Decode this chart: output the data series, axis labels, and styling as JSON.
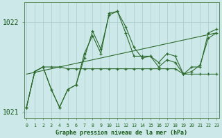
{
  "title": "Graphe pression niveau de la mer (hPa)",
  "hours": [
    0,
    1,
    2,
    3,
    4,
    5,
    6,
    7,
    8,
    9,
    10,
    11,
    12,
    13,
    14,
    15,
    16,
    17,
    18,
    19,
    20,
    21,
    22,
    23
  ],
  "line_main": [
    1021.05,
    1021.45,
    1021.5,
    1021.25,
    1021.05,
    1021.25,
    1021.3,
    1021.65,
    1021.85,
    1021.65,
    1022.1,
    1022.12,
    1021.95,
    1021.72,
    1021.6,
    1021.62,
    1021.5,
    1021.58,
    1021.55,
    1021.42,
    1021.45,
    1021.52,
    1021.82,
    1021.88
  ],
  "line_flat": [
    1021.05,
    1021.45,
    1021.5,
    1021.5,
    1021.5,
    1021.48,
    1021.48,
    1021.48,
    1021.48,
    1021.48,
    1021.48,
    1021.48,
    1021.48,
    1021.48,
    1021.48,
    1021.48,
    1021.48,
    1021.48,
    1021.48,
    1021.42,
    1021.42,
    1021.42,
    1021.42,
    1021.42
  ],
  "line_envelope": [
    1021.05,
    1021.45,
    1021.5,
    1021.25,
    1021.05,
    1021.25,
    1021.3,
    1021.6,
    1021.9,
    1021.7,
    1022.08,
    1022.12,
    1021.88,
    1021.62,
    1021.62,
    1021.62,
    1021.55,
    1021.65,
    1021.62,
    1021.42,
    1021.5,
    1021.5,
    1021.88,
    1021.92
  ],
  "trend_line": [
    [
      0,
      23
    ],
    [
      1021.42,
      1021.88
    ]
  ],
  "ylim": [
    1020.93,
    1022.22
  ],
  "ytick_vals": [
    1021.0,
    1022.0
  ],
  "ytick_labels": [
    "1021",
    "1022"
  ],
  "line_color": "#2d6a2d",
  "bg_color": "#cce8e8",
  "grid_color": "#aacccc",
  "text_color": "#1a5c1a"
}
